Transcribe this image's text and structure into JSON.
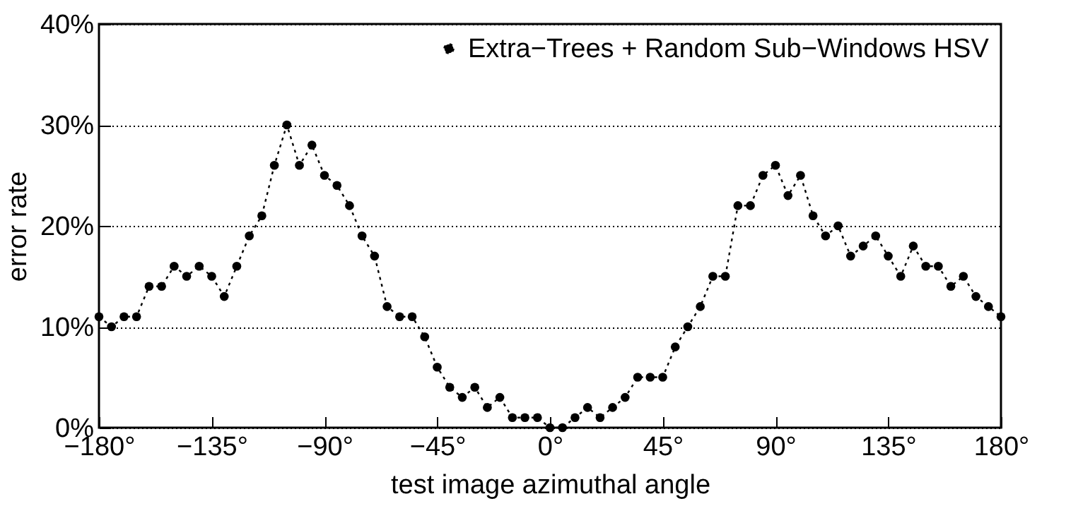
{
  "chart_data": {
    "type": "line",
    "xlabel": "test image azimuthal angle",
    "ylabel": "error rate",
    "x": [
      -180,
      -175,
      -170,
      -165,
      -160,
      -155,
      -150,
      -145,
      -140,
      -135,
      -130,
      -125,
      -120,
      -115,
      -110,
      -105,
      -100,
      -95,
      -90,
      -85,
      -80,
      -75,
      -70,
      -65,
      -60,
      -55,
      -50,
      -45,
      -40,
      -35,
      -30,
      -25,
      -20,
      -15,
      -10,
      -5,
      0,
      5,
      10,
      15,
      20,
      25,
      30,
      35,
      40,
      45,
      50,
      55,
      60,
      65,
      70,
      75,
      80,
      85,
      90,
      95,
      100,
      105,
      110,
      115,
      120,
      125,
      130,
      135,
      140,
      145,
      150,
      155,
      160,
      165,
      170,
      175,
      180
    ],
    "series": [
      {
        "name": "Extra−Trees + Random Sub−Windows HSV",
        "color": "#000000",
        "values": [
          11,
          10,
          11,
          11,
          14,
          14,
          16,
          15,
          16,
          15,
          13,
          16,
          19,
          21,
          26,
          30,
          26,
          28,
          25,
          24,
          22,
          19,
          17,
          12,
          11,
          11,
          9,
          6,
          4,
          3,
          4,
          2,
          3,
          1,
          1,
          1,
          0,
          0,
          1,
          2,
          1,
          2,
          3,
          5,
          5,
          5,
          8,
          10,
          12,
          15,
          15,
          22,
          22,
          25,
          26,
          23,
          25,
          21,
          19,
          20,
          17,
          18,
          19,
          17,
          15,
          18,
          16,
          16,
          14,
          15,
          13,
          12,
          11
        ]
      }
    ],
    "xlim": [
      -180,
      180
    ],
    "xticks": [
      {
        "value": -180,
        "label": "−180°"
      },
      {
        "value": -135,
        "label": "−135°"
      },
      {
        "value": -90,
        "label": "−90°"
      },
      {
        "value": -45,
        "label": "−45°"
      },
      {
        "value": 0,
        "label": "0°"
      },
      {
        "value": 45,
        "label": "45°"
      },
      {
        "value": 90,
        "label": "90°"
      },
      {
        "value": 135,
        "label": "135°"
      },
      {
        "value": 180,
        "label": "180°"
      }
    ],
    "ylim": [
      0,
      40
    ],
    "yticks": [
      {
        "value": 0,
        "label": "0%"
      },
      {
        "value": 10,
        "label": "10%"
      },
      {
        "value": 20,
        "label": "20%"
      },
      {
        "value": 30,
        "label": "30%"
      },
      {
        "value": 40,
        "label": "40%"
      }
    ],
    "grid": "y",
    "legend": "top right",
    "marker": "circle",
    "line_style": "dotted"
  }
}
